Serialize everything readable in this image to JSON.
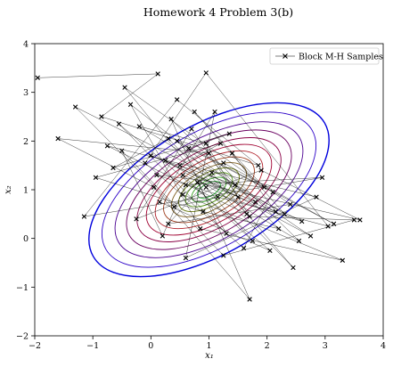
{
  "chart_data": {
    "type": "scatter",
    "title": "Homework 4 Problem 3(b)",
    "xlabel": "x₁",
    "ylabel": "x₂",
    "xlim": [
      -2,
      4
    ],
    "ylim": [
      -2,
      4
    ],
    "xticks": [
      -2,
      -1,
      0,
      1,
      2,
      3,
      4
    ],
    "yticks": [
      -2,
      -1,
      0,
      1,
      2,
      3,
      4
    ],
    "x_tick_labels": [
      "−2",
      "−1",
      "0",
      "1",
      "2",
      "3",
      "4"
    ],
    "y_tick_labels": [
      "−2",
      "−1",
      "0",
      "1",
      "2",
      "3",
      "4"
    ],
    "grid": false,
    "legend": {
      "position": "top-right",
      "entries": [
        "Block M-H Samples"
      ]
    },
    "contours": {
      "center": [
        1,
        1
      ],
      "angle_deg": -30,
      "semi_axes": [
        [
          2.3,
          1.32
        ],
        [
          2.05,
          1.18
        ],
        [
          1.8,
          1.03
        ],
        [
          1.58,
          0.91
        ],
        [
          1.38,
          0.79
        ],
        [
          1.2,
          0.69
        ],
        [
          1.03,
          0.59
        ],
        [
          0.87,
          0.5
        ],
        [
          0.72,
          0.41
        ],
        [
          0.58,
          0.33
        ],
        [
          0.45,
          0.26
        ],
        [
          0.33,
          0.19
        ],
        [
          0.22,
          0.13
        ]
      ],
      "colors": [
        "#0000dd",
        "#2b00c8",
        "#4a0090",
        "#6a0060",
        "#8a0045",
        "#a00030",
        "#b0202a",
        "#a04020",
        "#806020",
        "#6a7a10",
        "#4f8f10",
        "#35a020",
        "#22b030"
      ]
    },
    "series": [
      {
        "name": "Block M-H Samples",
        "marker": "x",
        "color": "#000000",
        "x": [
          -1.95,
          0.12,
          -0.85,
          1.85,
          0.45,
          -1.15,
          2.95,
          0.6,
          0.2,
          -0.5,
          1.25,
          3.5,
          1.7,
          0.95,
          -0.2,
          2.3,
          0.75,
          1.95,
          0.1,
          2.6,
          -1.3,
          0.4,
          1.15,
          3.05,
          0.95,
          -0.1,
          1.6,
          2.1,
          0.65,
          1.35,
          -0.65,
          0.3,
          2.45,
          1.05,
          0.55,
          3.3,
          0.85,
          -0.35,
          1.8,
          0.0,
          1.45,
          2.75,
          0.5,
          1.2,
          -0.95,
          0.9,
          2.2,
          0.35,
          1.7,
          0.05,
          -1.6,
          1.0,
          2.55,
          0.25,
          1.5,
          0.7,
          -0.25,
          1.9,
          3.6,
          0.8,
          1.3,
          -0.55,
          2.05,
          0.15,
          1.1,
          0.6,
          2.85,
          -0.75,
          1.65,
          0.45,
          3.15,
          1.25,
          0.3,
          2.4,
          -0.45,
          0.95,
          1.75,
          0.55,
          2.15,
          1.4
        ],
        "y": [
          3.3,
          3.38,
          2.5,
          1.5,
          2.85,
          0.45,
          1.25,
          1.1,
          0.05,
          1.8,
          -0.35,
          0.38,
          0.45,
          1.95,
          2.3,
          0.5,
          2.6,
          1.05,
          1.3,
          0.35,
          2.7,
          0.65,
          0.85,
          0.25,
          3.4,
          1.55,
          -0.2,
          0.95,
          1.85,
          2.15,
          1.45,
          2.05,
          -0.6,
          1.35,
          0.9,
          -0.45,
          0.2,
          2.75,
          0.75,
          1.7,
          1.1,
          0.05,
          1.5,
          1.95,
          1.25,
          0.55,
          0.2,
          2.45,
          -1.25,
          1.05,
          2.05,
          1.75,
          -0.05,
          1.6,
          0.85,
          2.25,
          0.4,
          1.4,
          0.38,
          1.15,
          0.1,
          2.35,
          -0.25,
          0.75,
          2.6,
          -0.4,
          0.85,
          1.9,
          0.5,
          2.0,
          0.3,
          1.55,
          0.3,
          0.7,
          3.1,
          1.05,
          -0.05,
          1.3,
          0.55,
          1.75
        ]
      }
    ]
  }
}
